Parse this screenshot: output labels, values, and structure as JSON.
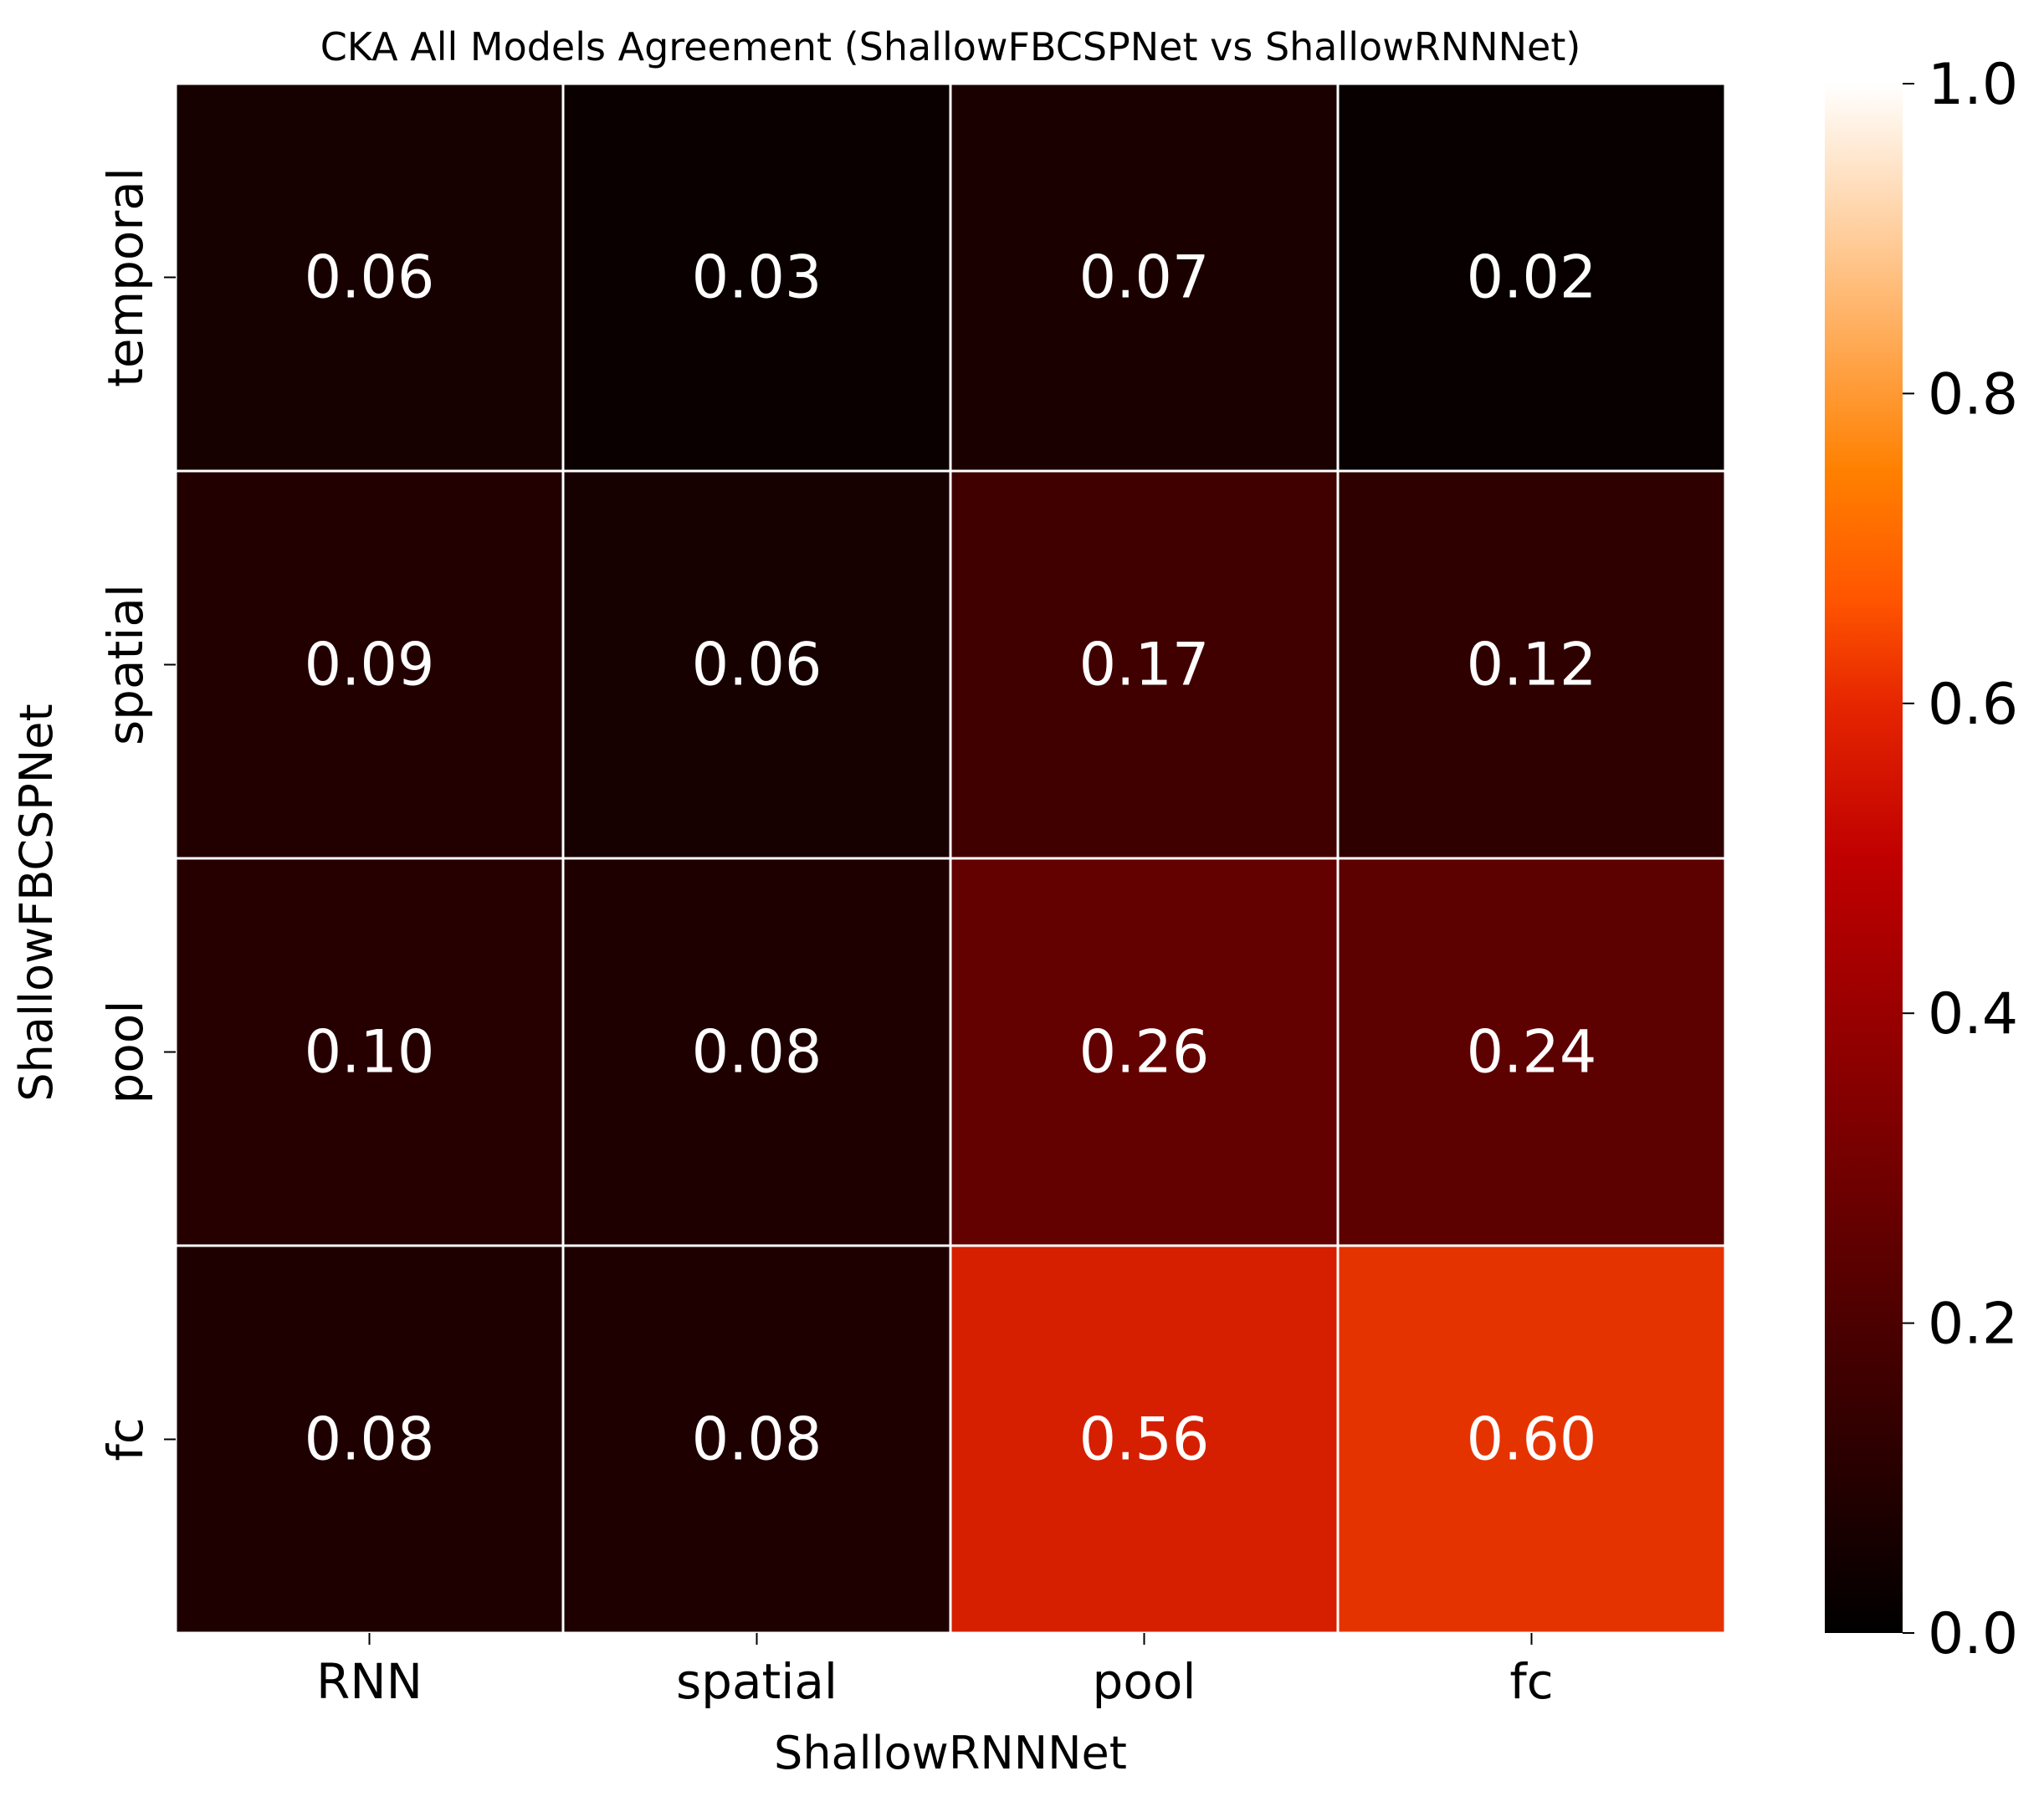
{
  "chart_data": {
    "type": "heatmap",
    "title": "CKA All Models Agreement (ShallowFBCSPNet vs ShallowRNNNet)",
    "xlabel": "ShallowRNNNet",
    "ylabel": "ShallowFBCSPNet",
    "x_categories": [
      "RNN",
      "spatial",
      "pool",
      "fc"
    ],
    "y_categories": [
      "temporal",
      "spatial",
      "pool",
      "fc"
    ],
    "values": [
      [
        0.06,
        0.03,
        0.07,
        0.02
      ],
      [
        0.09,
        0.06,
        0.17,
        0.12
      ],
      [
        0.1,
        0.08,
        0.26,
        0.24
      ],
      [
        0.08,
        0.08,
        0.56,
        0.6
      ]
    ],
    "value_format": "0.00",
    "colormap": "gist_heat",
    "cell_border_color": "#ffffff",
    "annotation_color": "#ffffff",
    "colorbar": {
      "range": [
        0.0,
        1.0
      ],
      "ticks": [
        "0.0",
        "0.2",
        "0.4",
        "0.6",
        "0.8",
        "1.0"
      ]
    }
  }
}
